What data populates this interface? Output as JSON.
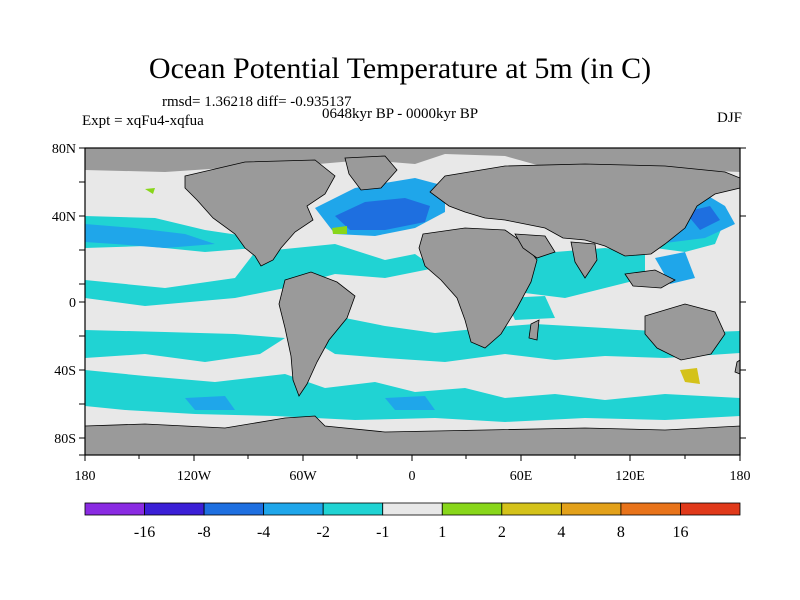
{
  "title": "Ocean Potential Temperature at 5m (in C)",
  "stats": "rmsd= 1.36218 diff= -0.935137",
  "experiment": "Expt = xqFu4-xqfua",
  "period": "0648kyr BP - 0000kyr BP",
  "season": "DJF",
  "lat_labels": [
    "80N",
    "40N",
    "0",
    "40S",
    "80S"
  ],
  "lon_labels": [
    "180",
    "120W",
    "60W",
    "0",
    "60E",
    "120E",
    "180"
  ],
  "colorbar": {
    "colors": [
      "#8a2be2",
      "#3b1fd6",
      "#1e6fe0",
      "#1fa6ea",
      "#20d3d3",
      "#e8e8e8",
      "#88d61a",
      "#d4c21a",
      "#e3a11a",
      "#e8731a",
      "#e0391a"
    ],
    "labels": [
      "-16",
      "-8",
      "-4",
      "-2",
      "-1",
      "1",
      "2",
      "4",
      "8",
      "16"
    ]
  },
  "colors": {
    "land": "#9a9a9a",
    "neutral": "#e8e8e8",
    "cyan": "#20d3d3",
    "lightblue": "#1fa6ea",
    "blue": "#1e6fe0",
    "green": "#88d61a",
    "yellow": "#d4c21a"
  }
}
